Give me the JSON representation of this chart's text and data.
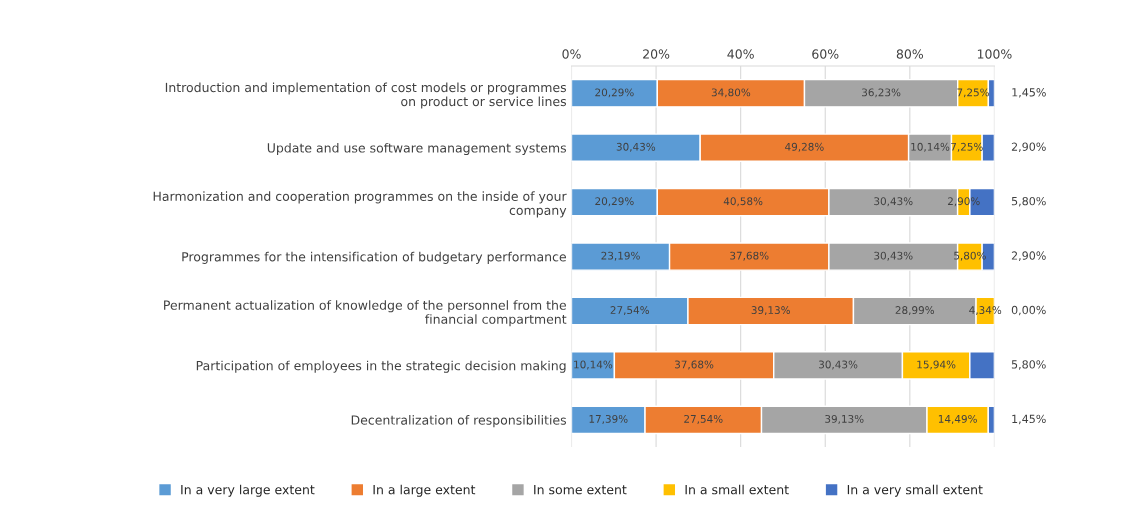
{
  "chart_data": {
    "type": "bar",
    "orientation": "horizontal",
    "stacked": true,
    "categories": [
      "Introduction and implementation of cost models or programmes\non product or service lines",
      "Update and use software management systems",
      "Harmonization and cooperation programmes on the inside of your\ncompany",
      "Programmes for the intensification of budgetary performance",
      "Permanent actualization of knowledge of the personnel from the\nfinancial compartment",
      "Participation of employees in the strategic decision making",
      "Decentralization of responsibilities"
    ],
    "series": [
      {
        "name": "In a very large extent",
        "color": "#5b9bd5",
        "values": [
          20.29,
          30.43,
          20.29,
          23.19,
          27.54,
          10.14,
          17.39
        ],
        "value_labels": [
          "20,29%",
          "30,43%",
          "20,29%",
          "23,19%",
          "27,54%",
          "10,14%",
          "17,39%"
        ]
      },
      {
        "name": "In a large extent",
        "color": "#ed7d31",
        "values": [
          34.8,
          49.28,
          40.58,
          37.68,
          39.13,
          37.68,
          27.54
        ],
        "value_labels": [
          "34,80%",
          "49,28%",
          "40,58%",
          "37,68%",
          "39,13%",
          "37,68%",
          "27,54%"
        ]
      },
      {
        "name": "In some extent",
        "color": "#a5a5a5",
        "values": [
          36.23,
          10.14,
          30.43,
          30.43,
          28.99,
          30.43,
          39.13
        ],
        "value_labels": [
          "36,23%",
          "10,14%",
          "30,43%",
          "30,43%",
          "28,99%",
          "30,43%",
          "39,13%"
        ]
      },
      {
        "name": "In a small extent",
        "color": "#ffc000",
        "values": [
          7.25,
          7.25,
          2.9,
          5.8,
          4.34,
          15.94,
          14.49
        ],
        "value_labels": [
          "7,25%",
          "7,25%",
          "2,90%",
          "5,80%",
          "4,34%",
          "15,94%",
          "14,49%"
        ]
      },
      {
        "name": "In a very small extent",
        "color": "#4472c4",
        "values": [
          1.45,
          2.9,
          5.8,
          2.9,
          0.0,
          5.8,
          1.45
        ],
        "value_labels": [
          "1,45%",
          "2,90%",
          "5,80%",
          "2,90%",
          "0,00%",
          "5,80%",
          "1,45%"
        ]
      }
    ],
    "xlim": [
      0,
      100
    ],
    "xticks": [
      {
        "value": 0,
        "label": "0%"
      },
      {
        "value": 20,
        "label": "20%"
      },
      {
        "value": 40,
        "label": "40%"
      },
      {
        "value": 60,
        "label": "60%"
      },
      {
        "value": 80,
        "label": "80%"
      },
      {
        "value": 100,
        "label": "100%"
      }
    ],
    "grid": "x",
    "legend": "bottom"
  }
}
